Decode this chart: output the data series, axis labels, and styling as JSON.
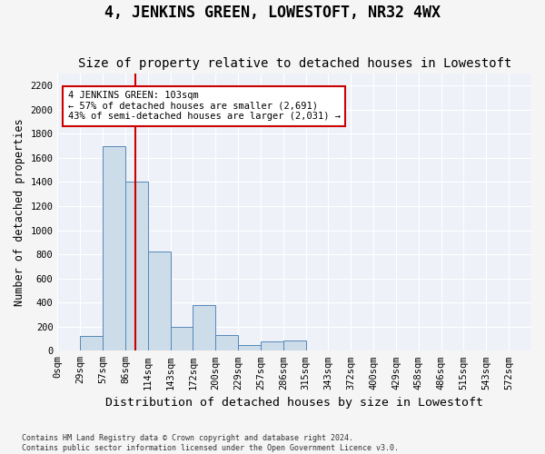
{
  "title": "4, JENKINS GREEN, LOWESTOFT, NR32 4WX",
  "subtitle": "Size of property relative to detached houses in Lowestoft",
  "xlabel": "Distribution of detached houses by size in Lowestoft",
  "ylabel": "Number of detached properties",
  "footer_line1": "Contains HM Land Registry data © Crown copyright and database right 2024.",
  "footer_line2": "Contains public sector information licensed under the Open Government Licence v3.0.",
  "bin_labels": [
    "0sqm",
    "29sqm",
    "57sqm",
    "86sqm",
    "114sqm",
    "143sqm",
    "172sqm",
    "200sqm",
    "229sqm",
    "257sqm",
    "286sqm",
    "315sqm",
    "343sqm",
    "372sqm",
    "400sqm",
    "429sqm",
    "458sqm",
    "486sqm",
    "515sqm",
    "543sqm",
    "572sqm"
  ],
  "bar_values": [
    5,
    120,
    1700,
    1400,
    820,
    200,
    380,
    130,
    50,
    75,
    85,
    5,
    0,
    0,
    0,
    0,
    0,
    0,
    0,
    0
  ],
  "bar_color": "#ccdce8",
  "bar_edge_color": "#5588bb",
  "ylim": [
    0,
    2300
  ],
  "yticks": [
    0,
    200,
    400,
    600,
    800,
    1000,
    1200,
    1400,
    1600,
    1800,
    2000,
    2200
  ],
  "property_line_x": 3.45,
  "annotation_text": "4 JENKINS GREEN: 103sqm\n← 57% of detached houses are smaller (2,691)\n43% of semi-detached houses are larger (2,031) →",
  "vline_color": "#cc0000",
  "background_color": "#eef2f8",
  "grid_color": "#ffffff",
  "title_fontsize": 12,
  "subtitle_fontsize": 10,
  "tick_fontsize": 7.5,
  "ylabel_fontsize": 8.5,
  "xlabel_fontsize": 9.5
}
